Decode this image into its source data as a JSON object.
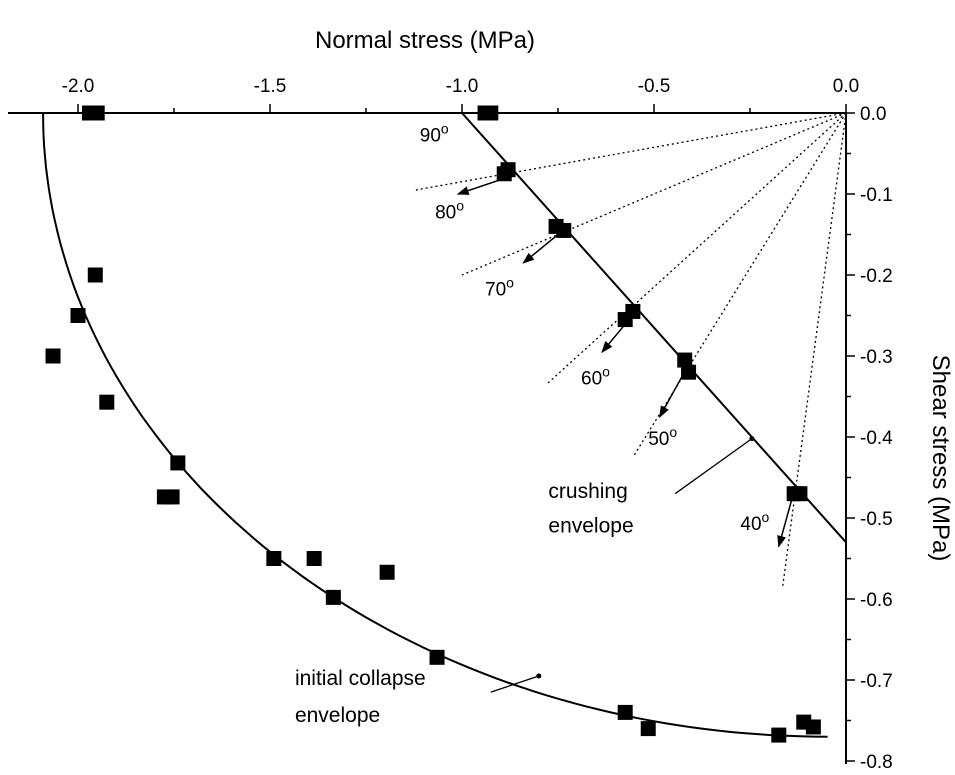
{
  "chart_data": {
    "type": "scatter",
    "title": "",
    "xlabel": "Normal stress (MPa)",
    "ylabel": "Shear stress (MPa)",
    "xlim": [
      -2.2,
      0.0
    ],
    "ylim": [
      -0.8,
      0.0
    ],
    "x_position": "top",
    "y_position": "right",
    "x_ticks": [
      {
        "v": -2.0,
        "label": "-2.0"
      },
      {
        "v": -1.5,
        "label": "-1.5"
      },
      {
        "v": -1.0,
        "label": "-1.0"
      },
      {
        "v": -0.5,
        "label": "-0.5"
      },
      {
        "v": 0.0,
        "label": "0.0"
      }
    ],
    "y_ticks": [
      {
        "v": 0.0,
        "label": "0.0"
      },
      {
        "v": -0.1,
        "label": "-0.1"
      },
      {
        "v": -0.2,
        "label": "-0.2"
      },
      {
        "v": -0.3,
        "label": "-0.3"
      },
      {
        "v": -0.4,
        "label": "-0.4"
      },
      {
        "v": -0.5,
        "label": "-0.5"
      },
      {
        "v": -0.6,
        "label": "-0.6"
      },
      {
        "v": -0.7,
        "label": "-0.7"
      },
      {
        "v": -0.8,
        "label": "-0.8"
      }
    ],
    "grid": false,
    "series": [
      {
        "marker": "square",
        "points": [
          [
            -1.97,
            0.0
          ],
          [
            -1.95,
            0.0
          ],
          [
            -0.94,
            0.0
          ],
          [
            -0.925,
            0.0
          ],
          [
            -0.89,
            -0.075
          ],
          [
            -0.88,
            -0.07
          ],
          [
            -0.755,
            -0.14
          ],
          [
            -0.735,
            -0.145
          ],
          [
            -0.575,
            -0.255
          ],
          [
            -0.555,
            -0.245
          ],
          [
            -0.42,
            -0.305
          ],
          [
            -0.41,
            -0.32
          ],
          [
            -0.135,
            -0.47
          ],
          [
            -0.12,
            -0.47
          ],
          [
            -1.955,
            -0.2
          ],
          [
            -2.0,
            -0.25
          ],
          [
            -2.065,
            -0.3
          ],
          [
            -1.925,
            -0.357
          ],
          [
            -1.74,
            -0.432
          ],
          [
            -1.775,
            -0.474
          ],
          [
            -1.755,
            -0.474
          ],
          [
            -1.49,
            -0.55
          ],
          [
            -1.385,
            -0.55
          ],
          [
            -1.195,
            -0.567
          ],
          [
            -1.335,
            -0.598
          ],
          [
            -1.065,
            -0.672
          ],
          [
            -0.575,
            -0.74
          ],
          [
            -0.515,
            -0.76
          ],
          [
            -0.175,
            -0.768
          ],
          [
            -0.11,
            -0.752
          ],
          [
            -0.085,
            -0.758
          ]
        ]
      }
    ],
    "curves": {
      "initial_collapse_envelope": {
        "center_x": -0.048,
        "a": 2.043,
        "b": 0.77
      },
      "crushing_envelope": {
        "x0": -1.0,
        "y0": 0.0,
        "x1": 0.0,
        "y1": -0.53
      }
    },
    "loading_paths": [
      {
        "angle_label": "90",
        "line_to": [
          -1.02,
          0.0
        ],
        "arrow_from": [
          -0.885,
          -0.07
        ],
        "arrow_to": [
          -0.89,
          -0.07
        ],
        "label_pos": [
          -1.11,
          -0.035
        ]
      },
      {
        "angle_label": "80",
        "line_to": [
          -1.12,
          -0.095
        ],
        "arrow_from": [
          -0.885,
          -0.08
        ],
        "arrow_to": [
          -1.01,
          -0.1
        ],
        "label_pos": [
          -1.07,
          -0.13
        ]
      },
      {
        "angle_label": "70",
        "line_to": [
          -1.0,
          -0.2
        ],
        "arrow_from": [
          -0.75,
          -0.15
        ],
        "arrow_to": [
          -0.84,
          -0.185
        ],
        "label_pos": [
          -0.94,
          -0.225
        ]
      },
      {
        "angle_label": "60",
        "line_to": [
          -0.78,
          -0.335
        ],
        "arrow_from": [
          -0.565,
          -0.255
        ],
        "arrow_to": [
          -0.635,
          -0.295
        ],
        "label_pos": [
          -0.69,
          -0.335
        ]
      },
      {
        "angle_label": "50",
        "line_to": [
          -0.555,
          -0.425
        ],
        "arrow_from": [
          -0.415,
          -0.315
        ],
        "arrow_to": [
          -0.485,
          -0.375
        ],
        "label_pos": [
          -0.515,
          -0.41
        ]
      },
      {
        "angle_label": "40",
        "line_to": [
          -0.165,
          -0.585
        ],
        "arrow_from": [
          -0.14,
          -0.475
        ],
        "arrow_to": [
          -0.175,
          -0.535
        ],
        "label_pos": [
          -0.275,
          -0.515
        ]
      }
    ],
    "annotations": [
      {
        "line1": "crushing",
        "line2": "envelope",
        "text_pos": [
          -0.775,
          -0.475
        ],
        "text_pos2": [
          -0.775,
          -0.518
        ],
        "leader_from": [
          -0.445,
          -0.47
        ],
        "leader_to": [
          -0.245,
          -0.402
        ],
        "anchor": "start"
      },
      {
        "line1": "initial collapse",
        "line2": "envelope",
        "text_pos": [
          -1.435,
          -0.706
        ],
        "text_pos2": [
          -1.435,
          -0.752
        ],
        "leader_from": [
          -0.925,
          -0.715
        ],
        "leader_to": [
          -0.8,
          -0.695
        ],
        "anchor": "start"
      }
    ]
  }
}
